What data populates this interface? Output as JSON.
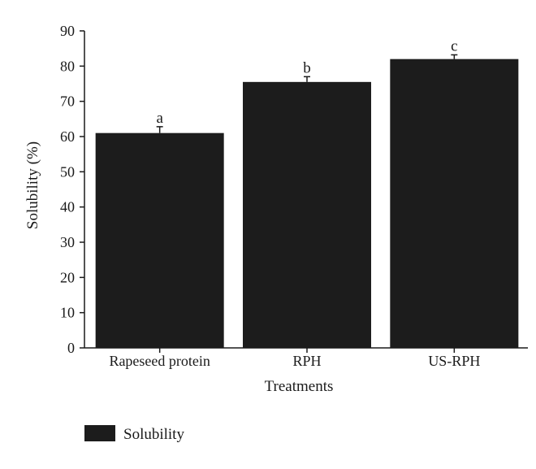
{
  "chart_data": {
    "type": "bar",
    "categories": [
      "Rapeseed protein",
      "RPH",
      "US-RPH"
    ],
    "series": [
      {
        "name": "Solubility",
        "values": [
          61,
          75.5,
          82
        ],
        "errors": [
          1.8,
          1.5,
          1.2
        ]
      }
    ],
    "significance_letters": [
      "a",
      "b",
      "c"
    ],
    "xlabel": "Treatments",
    "ylabel": "Solubility (%)",
    "ylim": [
      0,
      90
    ],
    "yticks": [
      0,
      10,
      20,
      30,
      40,
      50,
      60,
      70,
      80,
      90
    ],
    "grid": false,
    "legend_position": "bottom-left",
    "colors": {
      "bar": "#1c1c1c",
      "axis": "#1a1a1a"
    }
  }
}
